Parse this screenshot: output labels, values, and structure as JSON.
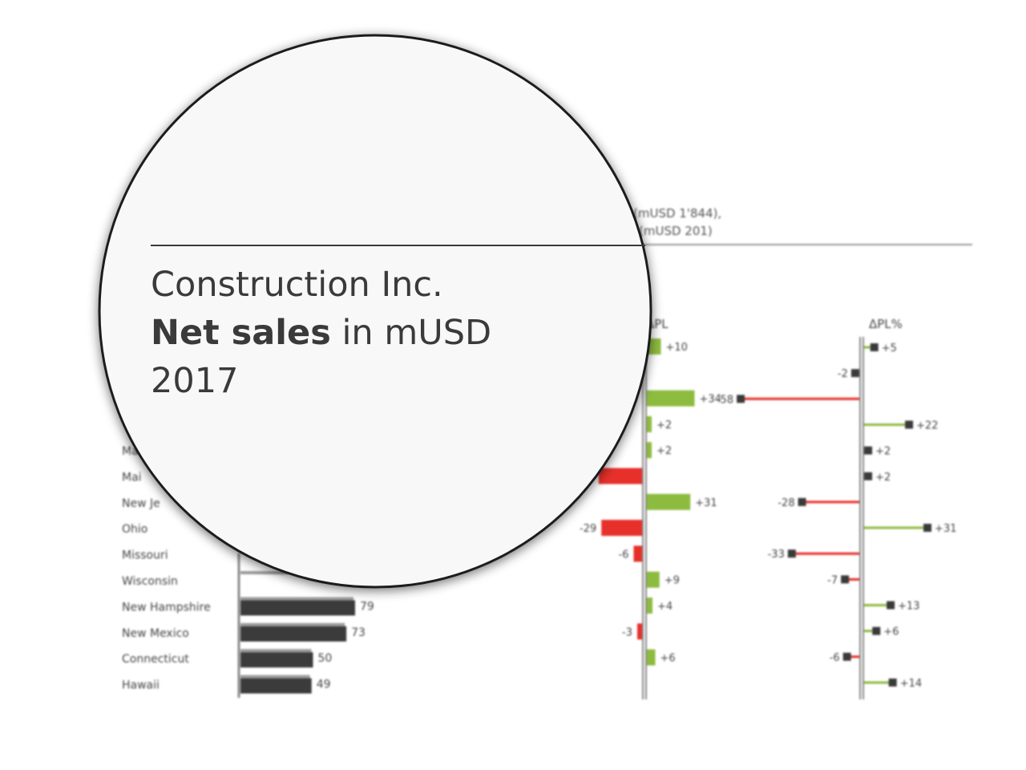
{
  "colors": {
    "bar_main": "#3b3b3b",
    "bar_ref": "#9b9b9b",
    "positive": "#8dbb3f",
    "negative": "#e8302a",
    "axis": "#8a8a8a",
    "text": "#3a3a3a",
    "marker": "#3a3a3a"
  },
  "header_behind": {
    "line1": "(mUSD 1'844),",
    "line2": "(mUSD 201)"
  },
  "lens": {
    "company": "Construction Inc.",
    "measure_bold": "Net sales",
    "measure_rest": " in mUSD",
    "year": "2017"
  },
  "chart_data": [
    {
      "type": "bar",
      "categories": [
        "Ohio",
        "Missouri",
        "Wisconsin",
        "New Hampshire",
        "New Mexico",
        "Connecticut",
        "Hawaii"
      ],
      "category_labels_shown": [
        "Ma",
        "Mai",
        "New Je",
        "Ohio",
        "Missouri",
        "Wisconsin",
        "New Hampshire",
        "New Mexico",
        "Connecticut",
        "Hawaii"
      ],
      "values_partial": {
        "New Hampshire": 79,
        "New Mexico": 73,
        "Connecticut": 50,
        "Hawaii": 49
      }
    },
    {
      "type": "bar",
      "title": "ΔPL",
      "rows": [
        {
          "label": "+10",
          "value": 10
        },
        {
          "label": "",
          "value": -3
        },
        {
          "label": "+34",
          "value": 34
        },
        {
          "label": "+2",
          "value": 2
        },
        {
          "label": "+2",
          "value": 2
        },
        {
          "label": "-31",
          "value": -31
        },
        {
          "label": "+31",
          "value": 31
        },
        {
          "label": "-29",
          "value": -29
        },
        {
          "label": "-6",
          "value": -6
        },
        {
          "label": "+9",
          "value": 9
        },
        {
          "label": "+4",
          "value": 4
        },
        {
          "label": "-3",
          "value": -3
        },
        {
          "label": "+6",
          "value": 6
        }
      ]
    },
    {
      "type": "bar",
      "title": "ΔPL%",
      "rows": [
        {
          "label": "+5",
          "value": 5
        },
        {
          "label": "-2",
          "value": -2
        },
        {
          "label": "-58",
          "value": -58
        },
        {
          "label": "+22",
          "value": 22
        },
        {
          "label": "+2",
          "value": 2
        },
        {
          "label": "+2",
          "value": 2
        },
        {
          "label": "-28",
          "value": -28
        },
        {
          "label": "+31",
          "value": 31
        },
        {
          "label": "-33",
          "value": -33
        },
        {
          "label": "-7",
          "value": -7
        },
        {
          "label": "+13",
          "value": 13
        },
        {
          "label": "+6",
          "value": 6
        },
        {
          "label": "-6",
          "value": -6
        },
        {
          "label": "+14",
          "value": 14
        }
      ]
    }
  ]
}
